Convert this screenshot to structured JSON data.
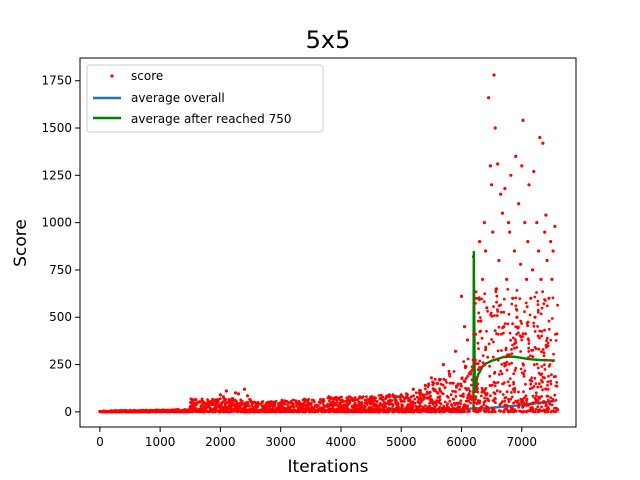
{
  "chart_data": {
    "type": "scatter",
    "title": "5x5",
    "xlabel": "Iterations",
    "ylabel": "Score",
    "xlim": [
      -330,
      7900
    ],
    "ylim": [
      -80,
      1870
    ],
    "xticks": [
      0,
      1000,
      2000,
      3000,
      4000,
      5000,
      6000,
      7000
    ],
    "yticks": [
      0,
      250,
      500,
      750,
      1000,
      1250,
      1500,
      1750
    ],
    "grid": false,
    "legend_position": "top-left",
    "series": [
      {
        "name": "score",
        "kind": "points",
        "color": "#ff0000",
        "x": [
          0,
          200,
          500,
          800,
          1100,
          1300,
          1500,
          1600,
          1700,
          1800,
          1900,
          2000,
          2050,
          2100,
          2200,
          2250,
          2300,
          2400,
          2450,
          2500,
          2600,
          2700,
          2800,
          2900,
          3000,
          3100,
          3200,
          3300,
          3400,
          3500,
          3600,
          3700,
          3800,
          3900,
          4000,
          4100,
          4200,
          4300,
          4400,
          4500,
          4600,
          4700,
          4800,
          4900,
          5000,
          5100,
          5200,
          5300,
          5400,
          5500,
          5600,
          5700,
          5800,
          5900,
          6000,
          6050,
          6100,
          6150,
          6200,
          6250,
          6300,
          6320,
          6350,
          6380,
          6400,
          6420,
          6450,
          6480,
          6500,
          6520,
          6540,
          6560,
          6580,
          6600,
          6620,
          6650,
          6680,
          6700,
          6720,
          6750,
          6780,
          6800,
          6820,
          6850,
          6880,
          6900,
          6920,
          6950,
          6980,
          7000,
          7020,
          7050,
          7080,
          7100,
          7120,
          7150,
          7180,
          7200,
          7220,
          7250,
          7280,
          7300,
          7320,
          7350,
          7380,
          7400,
          7420,
          7450,
          7480,
          7500,
          7520,
          7550
        ],
        "y": [
          2,
          3,
          5,
          4,
          8,
          12,
          25,
          40,
          30,
          55,
          60,
          90,
          80,
          110,
          70,
          100,
          95,
          120,
          85,
          60,
          45,
          30,
          50,
          35,
          40,
          55,
          30,
          45,
          60,
          40,
          35,
          50,
          80,
          45,
          55,
          40,
          60,
          50,
          45,
          70,
          55,
          60,
          80,
          65,
          90,
          75,
          120,
          100,
          140,
          180,
          150,
          250,
          200,
          320,
          610,
          450,
          380,
          200,
          820,
          600,
          900,
          480,
          700,
          1000,
          850,
          550,
          1660,
          1300,
          1200,
          950,
          1780,
          1500,
          650,
          1310,
          800,
          1150,
          1050,
          450,
          1180,
          700,
          1000,
          950,
          1250,
          600,
          850,
          1350,
          500,
          1100,
          780,
          1300,
          1540,
          1000,
          700,
          900,
          1200,
          600,
          750,
          1270,
          500,
          1000,
          850,
          1450,
          700,
          1420,
          950,
          1040,
          800,
          600,
          900,
          700,
          850,
          980
        ]
      },
      {
        "name": "average overall",
        "kind": "line",
        "color": "#1f77b4",
        "x": [
          0,
          1000,
          2000,
          3000,
          4000,
          5000,
          6000,
          6500,
          7000,
          7550
        ],
        "y": [
          0,
          1,
          3,
          5,
          7,
          10,
          15,
          22,
          35,
          58
        ]
      },
      {
        "name": "average after reached 750",
        "kind": "line",
        "color": "#008000",
        "x": [
          6200,
          6205,
          6220,
          6240,
          6260,
          6280,
          6300,
          6350,
          6400,
          6450,
          6500,
          6600,
          6700,
          6800,
          6900,
          7000,
          7100,
          7200,
          7300,
          7400,
          7500,
          7550
        ],
        "y": [
          0,
          850,
          100,
          150,
          180,
          200,
          210,
          240,
          255,
          262,
          270,
          280,
          290,
          292,
          290,
          285,
          280,
          276,
          274,
          273,
          272,
          272
        ]
      }
    ]
  }
}
